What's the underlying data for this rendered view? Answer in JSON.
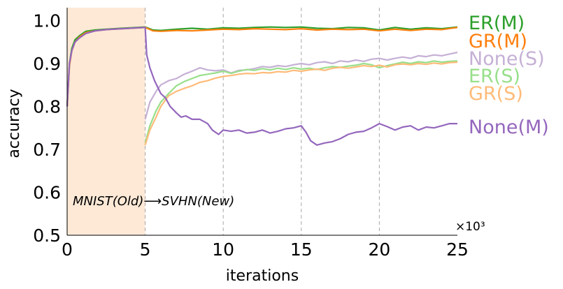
{
  "chart_data": {
    "type": "line",
    "xlabel": "iterations",
    "ylabel": "accuracy",
    "x_multiplier": "×10³",
    "xlim": [
      0,
      25
    ],
    "ylim": [
      0.5,
      1.03
    ],
    "xticks": [
      "0",
      "5",
      "10",
      "15",
      "20",
      "25"
    ],
    "yticks": [
      "0.5",
      "0.6",
      "0.7",
      "0.8",
      "0.9",
      "1.0"
    ],
    "grid": "vertical dashed at task boundaries",
    "shaded_region": {
      "x_start": 0,
      "x_end": 5,
      "color": "#fde9d6"
    },
    "annotation": "MNIST(Old)⟶SVHN(New)",
    "legend_placement": "right of plot, next to line ends",
    "series": [
      {
        "name": "ER(M)",
        "color": "#2ca02c",
        "x": [
          0,
          0.15,
          0.3,
          0.5,
          0.8,
          1.2,
          1.8,
          2.5,
          3.5,
          4.5,
          5,
          5.5,
          6,
          7,
          8,
          9,
          10,
          11,
          12,
          13,
          14,
          15,
          16,
          17,
          18,
          19,
          20,
          21,
          22,
          23,
          24,
          25
        ],
        "values": [
          0.8,
          0.9,
          0.935,
          0.955,
          0.965,
          0.975,
          0.978,
          0.98,
          0.982,
          0.984,
          0.985,
          0.978,
          0.977,
          0.98,
          0.982,
          0.98,
          0.983,
          0.982,
          0.984,
          0.985,
          0.984,
          0.985,
          0.982,
          0.981,
          0.984,
          0.983,
          0.978,
          0.984,
          0.98,
          0.983,
          0.981,
          0.985
        ]
      },
      {
        "name": "GR(M)",
        "color": "#ff7f0e",
        "x": [
          0,
          0.15,
          0.3,
          0.5,
          0.8,
          1.2,
          1.8,
          2.5,
          3.5,
          4.5,
          5,
          5.5,
          6,
          7,
          8,
          9,
          10,
          11,
          12,
          13,
          14,
          15,
          16,
          17,
          18,
          19,
          20,
          21,
          22,
          23,
          24,
          25
        ],
        "values": [
          0.8,
          0.895,
          0.93,
          0.95,
          0.962,
          0.972,
          0.976,
          0.979,
          0.981,
          0.983,
          0.984,
          0.976,
          0.975,
          0.977,
          0.976,
          0.978,
          0.98,
          0.979,
          0.981,
          0.98,
          0.979,
          0.981,
          0.978,
          0.98,
          0.979,
          0.98,
          0.976,
          0.98,
          0.977,
          0.98,
          0.979,
          0.984
        ]
      },
      {
        "name": "None(S)",
        "color": "#c5b0d5",
        "x": [
          5,
          5.3,
          5.7,
          6,
          6.5,
          7,
          7.5,
          8,
          8.5,
          9,
          9.5,
          10,
          10.5,
          11,
          11.5,
          12,
          12.5,
          13,
          13.5,
          14,
          14.5,
          15,
          15.5,
          16,
          16.5,
          17,
          17.5,
          18,
          18.5,
          19,
          19.5,
          20,
          20.5,
          21,
          21.5,
          22,
          22.5,
          23,
          23.5,
          24,
          24.5,
          25
        ],
        "values": [
          0.77,
          0.81,
          0.835,
          0.85,
          0.86,
          0.865,
          0.875,
          0.882,
          0.89,
          0.885,
          0.883,
          0.885,
          0.878,
          0.884,
          0.885,
          0.888,
          0.893,
          0.891,
          0.895,
          0.893,
          0.897,
          0.9,
          0.897,
          0.902,
          0.904,
          0.9,
          0.906,
          0.904,
          0.908,
          0.905,
          0.91,
          0.912,
          0.908,
          0.912,
          0.915,
          0.912,
          0.918,
          0.916,
          0.92,
          0.918,
          0.922,
          0.926
        ]
      },
      {
        "name": "ER(S)",
        "color": "#98df8a",
        "x": [
          5,
          5.3,
          5.7,
          6,
          6.5,
          7,
          7.5,
          8,
          8.5,
          9,
          9.5,
          10,
          10.5,
          11,
          11.5,
          12,
          12.5,
          13,
          13.5,
          14,
          14.5,
          15,
          15.5,
          16,
          16.5,
          17,
          17.5,
          18,
          18.5,
          19,
          19.5,
          20,
          20.5,
          21,
          21.5,
          22,
          22.5,
          23,
          23.5,
          24,
          24.5,
          25
        ],
        "values": [
          0.715,
          0.755,
          0.79,
          0.81,
          0.83,
          0.848,
          0.858,
          0.865,
          0.872,
          0.875,
          0.878,
          0.882,
          0.877,
          0.882,
          0.886,
          0.884,
          0.888,
          0.885,
          0.889,
          0.886,
          0.89,
          0.887,
          0.889,
          0.886,
          0.89,
          0.893,
          0.891,
          0.894,
          0.896,
          0.9,
          0.897,
          0.89,
          0.895,
          0.899,
          0.903,
          0.9,
          0.904,
          0.902,
          0.906,
          0.903,
          0.905,
          0.906
        ]
      },
      {
        "name": "GR(S)",
        "color": "#ffbb78",
        "x": [
          5,
          5.3,
          5.7,
          6,
          6.5,
          7,
          7.5,
          8,
          8.5,
          9,
          9.5,
          10,
          10.5,
          11,
          11.5,
          12,
          12.5,
          13,
          13.5,
          14,
          14.5,
          15,
          15.5,
          16,
          16.5,
          17,
          17.5,
          18,
          18.5,
          19,
          19.5,
          20,
          20.5,
          21,
          21.5,
          22,
          22.5,
          23,
          23.5,
          24,
          24.5,
          25
        ],
        "values": [
          0.71,
          0.745,
          0.775,
          0.8,
          0.825,
          0.835,
          0.842,
          0.848,
          0.856,
          0.86,
          0.866,
          0.87,
          0.872,
          0.875,
          0.877,
          0.876,
          0.879,
          0.878,
          0.881,
          0.88,
          0.884,
          0.882,
          0.885,
          0.887,
          0.884,
          0.889,
          0.891,
          0.889,
          0.892,
          0.895,
          0.893,
          0.896,
          0.892,
          0.897,
          0.899,
          0.897,
          0.9,
          0.898,
          0.901,
          0.899,
          0.902,
          0.903
        ]
      },
      {
        "name": "None(M)",
        "color": "#9467bd",
        "x": [
          0,
          0.15,
          0.3,
          0.5,
          0.8,
          1.2,
          1.8,
          2.5,
          3.5,
          4.5,
          5,
          5.1,
          5.3,
          5.6,
          6,
          6.3,
          6.6,
          7,
          7.3,
          7.6,
          8,
          8.5,
          9,
          9.3,
          9.7,
          10,
          10.5,
          11,
          11.5,
          12,
          12.5,
          13,
          13.5,
          14,
          14.5,
          15,
          15.3,
          15.6,
          16,
          16.5,
          17,
          17.5,
          18,
          18.5,
          19,
          19.5,
          20,
          20.5,
          21,
          21.5,
          22,
          22.5,
          23,
          23.5,
          24,
          24.5,
          25
        ],
        "values": [
          0.8,
          0.9,
          0.93,
          0.95,
          0.96,
          0.97,
          0.976,
          0.979,
          0.981,
          0.983,
          0.984,
          0.92,
          0.89,
          0.86,
          0.83,
          0.82,
          0.8,
          0.785,
          0.775,
          0.778,
          0.77,
          0.77,
          0.76,
          0.745,
          0.735,
          0.745,
          0.742,
          0.745,
          0.738,
          0.74,
          0.745,
          0.738,
          0.742,
          0.748,
          0.75,
          0.755,
          0.74,
          0.72,
          0.71,
          0.715,
          0.718,
          0.725,
          0.735,
          0.74,
          0.742,
          0.75,
          0.76,
          0.753,
          0.745,
          0.752,
          0.755,
          0.745,
          0.752,
          0.75,
          0.755,
          0.76,
          0.76
        ]
      }
    ]
  }
}
